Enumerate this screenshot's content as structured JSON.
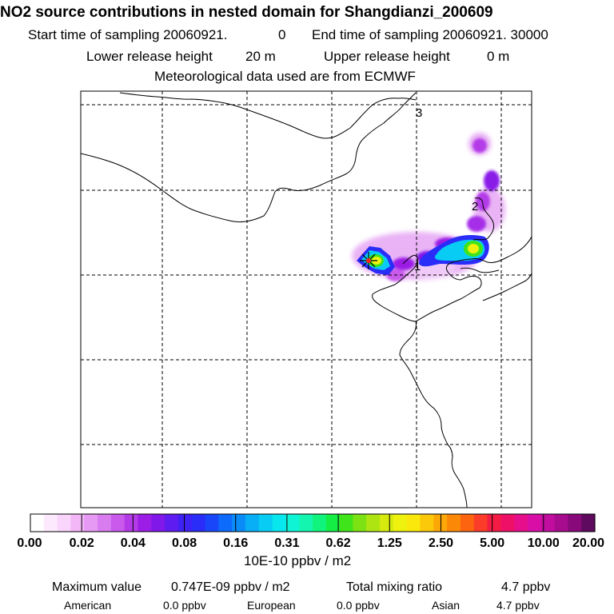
{
  "header": {
    "title": "NO2 source contributions in nested domain for Shangdianzi_200609",
    "start_label": "Start time of sampling 20060921.",
    "start_value": "0",
    "end_label": "End time of sampling 20060921. 30000",
    "lower_label": "Lower release height",
    "lower_value": "20 m",
    "upper_label": "Upper release height",
    "upper_value": "0 m",
    "met_line": "Meteorological data used are from ECMWF"
  },
  "map": {
    "grid_labels": [
      "3",
      "2",
      "1"
    ]
  },
  "chart_data": {
    "type": "heatmap",
    "title": "NO2 source contributions in nested domain for Shangdianzi_200609",
    "colorbar": {
      "tick_labels": [
        "0.00",
        "0.02",
        "0.04",
        "0.08",
        "0.16",
        "0.31",
        "0.62",
        "1.25",
        "2.50",
        "5.00",
        "10.00",
        "20.00"
      ],
      "unit": "10E-10 ppbv / m2",
      "colors": [
        "#ffffff",
        "#fde9fd",
        "#f9d4fb",
        "#f3b7f8",
        "#e79af4",
        "#d97cf0",
        "#c95aec",
        "#b43ae8",
        "#9c1ee6",
        "#7f18e8",
        "#5f1cf0",
        "#3f22f4",
        "#2a2cf8",
        "#1a46fa",
        "#0e6afa",
        "#0a8cf8",
        "#08aef6",
        "#08ccf4",
        "#08e6ee",
        "#10f4d6",
        "#14f6b0",
        "#10f47e",
        "#14ee44",
        "#40e41a",
        "#7ce214",
        "#aee412",
        "#d6ea10",
        "#eef20e",
        "#fae80c",
        "#fcc80a",
        "#fca808",
        "#fc8808",
        "#fc6410",
        "#fa3c28",
        "#f41c44",
        "#ee1066",
        "#e60e8a",
        "#d80ea6",
        "#c20ea0",
        "#a80c8e",
        "#880a7a",
        "#5e0a5e"
      ]
    },
    "source_marker": "Shangdianzi"
  },
  "footer": {
    "max_label": "Maximum value",
    "max_value": "0.747E-09 ppbv / m2",
    "total_label": "Total mixing ratio",
    "total_value": "4.7 ppbv",
    "regions": [
      {
        "name": "American",
        "value": "0.0 ppbv"
      },
      {
        "name": "European",
        "value": "0.0 ppbv"
      },
      {
        "name": "Asian",
        "value": "4.7 ppbv"
      }
    ]
  }
}
